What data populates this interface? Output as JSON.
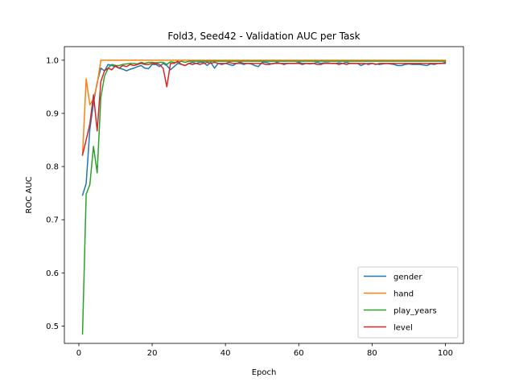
{
  "chart_data": {
    "type": "line",
    "title": "Fold3, Seed42 - Validation AUC per Task",
    "xlabel": "Epoch",
    "ylabel": "ROC AUC",
    "xlim": [
      -3.95,
      104.95
    ],
    "ylim": [
      0.4674,
      1.0255
    ],
    "xticks": [
      0,
      20,
      40,
      60,
      80,
      100
    ],
    "yticks": [
      0.5,
      0.6,
      0.7,
      0.8,
      0.9,
      1.0
    ],
    "ytick_labels": [
      "0.5",
      "0.6",
      "0.7",
      "0.8",
      "0.9",
      "1.0"
    ],
    "grid": false,
    "legend_position": "lower-right",
    "x": [
      1,
      2,
      3,
      4,
      5,
      6,
      7,
      8,
      9,
      10,
      11,
      12,
      13,
      14,
      15,
      16,
      17,
      18,
      19,
      20,
      21,
      22,
      23,
      24,
      25,
      26,
      27,
      28,
      29,
      30,
      31,
      32,
      33,
      34,
      35,
      36,
      37,
      38,
      39,
      40,
      41,
      42,
      43,
      44,
      45,
      46,
      47,
      48,
      49,
      50,
      51,
      52,
      53,
      54,
      55,
      56,
      57,
      58,
      59,
      60,
      61,
      62,
      63,
      64,
      65,
      66,
      67,
      68,
      69,
      70,
      71,
      72,
      73,
      74,
      75,
      76,
      77,
      78,
      79,
      80,
      81,
      82,
      83,
      84,
      85,
      86,
      87,
      88,
      89,
      90,
      91,
      92,
      93,
      94,
      95,
      96,
      97,
      98,
      99,
      100
    ],
    "series": [
      {
        "name": "gender",
        "color": "#1f77b4",
        "values": [
          0.746,
          0.768,
          0.87,
          0.92,
          0.958,
          0.985,
          0.98,
          0.992,
          0.99,
          0.988,
          0.985,
          0.983,
          0.98,
          0.983,
          0.985,
          0.988,
          0.99,
          0.985,
          0.984,
          0.992,
          0.992,
          0.988,
          0.994,
          0.99,
          0.982,
          0.988,
          0.994,
          0.992,
          0.99,
          0.994,
          0.996,
          0.994,
          0.996,
          0.996,
          0.99,
          0.996,
          0.985,
          0.994,
          0.994,
          0.994,
          0.992,
          0.99,
          0.994,
          0.994,
          0.992,
          0.994,
          0.993,
          0.99,
          0.988,
          0.996,
          0.996,
          0.994,
          0.993,
          0.996,
          0.994,
          0.994,
          0.994,
          0.994,
          0.994,
          0.996,
          0.994,
          0.994,
          0.993,
          0.994,
          0.996,
          0.994,
          0.995,
          0.995,
          0.994,
          0.994,
          0.995,
          0.994,
          0.996,
          0.994,
          0.994,
          0.994,
          0.99,
          0.993,
          0.994,
          0.994,
          0.993,
          0.992,
          0.993,
          0.994,
          0.993,
          0.992,
          0.99,
          0.99,
          0.992,
          0.993,
          0.992,
          0.992,
          0.992,
          0.991,
          0.99,
          0.993,
          0.992,
          0.994,
          0.994,
          0.994
        ]
      },
      {
        "name": "hand",
        "color": "#ff7f0e",
        "values": [
          0.821,
          0.965,
          0.916,
          0.927,
          0.955,
          1.0,
          1.0,
          1.0,
          1.0,
          1.0,
          1.0,
          1.0,
          1.0,
          1.0,
          1.0,
          1.0,
          1.0,
          1.0,
          1.0,
          1.0,
          1.0,
          1.0,
          1.0,
          1.0,
          1.0,
          1.0,
          1.0,
          1.0,
          1.0,
          1.0,
          1.0,
          1.0,
          1.0,
          1.0,
          1.0,
          1.0,
          1.0,
          1.0,
          1.0,
          1.0,
          1.0,
          1.0,
          1.0,
          1.0,
          1.0,
          1.0,
          1.0,
          1.0,
          1.0,
          1.0,
          1.0,
          1.0,
          1.0,
          1.0,
          1.0,
          1.0,
          1.0,
          1.0,
          1.0,
          1.0,
          1.0,
          1.0,
          1.0,
          1.0,
          1.0,
          1.0,
          1.0,
          1.0,
          1.0,
          1.0,
          1.0,
          1.0,
          1.0,
          1.0,
          1.0,
          1.0,
          1.0,
          1.0,
          1.0,
          1.0,
          1.0,
          1.0,
          1.0,
          1.0,
          1.0,
          1.0,
          1.0,
          1.0,
          1.0,
          1.0,
          1.0,
          1.0,
          1.0,
          1.0,
          1.0,
          1.0,
          1.0,
          1.0,
          1.0,
          1.0
        ]
      },
      {
        "name": "play_years",
        "color": "#2ca02c",
        "values": [
          0.485,
          0.748,
          0.766,
          0.838,
          0.788,
          0.93,
          0.97,
          0.985,
          0.992,
          0.99,
          0.99,
          0.992,
          0.993,
          0.994,
          0.994,
          0.993,
          0.996,
          0.994,
          0.996,
          0.996,
          0.995,
          0.996,
          0.996,
          0.992,
          0.997,
          0.996,
          0.996,
          0.998,
          0.996,
          0.998,
          0.998,
          0.998,
          0.998,
          0.998,
          0.998,
          0.998,
          0.998,
          0.998,
          0.998,
          0.998,
          0.998,
          0.998,
          0.998,
          0.998,
          0.998,
          0.998,
          0.998,
          0.998,
          0.998,
          0.998,
          0.998,
          0.998,
          0.998,
          0.998,
          0.998,
          0.998,
          0.998,
          0.998,
          0.998,
          0.998,
          0.998,
          0.998,
          0.998,
          0.998,
          0.998,
          0.998,
          0.998,
          0.998,
          0.998,
          0.998,
          0.998,
          0.998,
          0.998,
          0.998,
          0.998,
          0.998,
          0.998,
          0.998,
          0.998,
          0.998,
          0.998,
          0.998,
          0.998,
          0.998,
          0.998,
          0.998,
          0.998,
          0.998,
          0.998,
          0.998,
          0.998,
          0.998,
          0.998,
          0.998,
          0.998,
          0.998,
          0.998,
          0.998,
          0.998,
          0.998
        ]
      },
      {
        "name": "level",
        "color": "#d62728",
        "values": [
          0.822,
          0.85,
          0.88,
          0.935,
          0.867,
          0.96,
          0.98,
          0.985,
          0.982,
          0.99,
          0.985,
          0.99,
          0.988,
          0.992,
          0.99,
          0.992,
          0.994,
          0.992,
          0.992,
          0.994,
          0.994,
          0.992,
          0.985,
          0.95,
          0.994,
          0.994,
          0.998,
          0.992,
          0.99,
          0.994,
          0.992,
          0.994,
          0.992,
          0.994,
          0.996,
          0.994,
          0.996,
          0.994,
          0.992,
          0.994,
          0.996,
          0.994,
          0.994,
          0.996,
          0.994,
          0.994,
          0.994,
          0.994,
          0.994,
          0.994,
          0.992,
          0.992,
          0.994,
          0.994,
          0.994,
          0.992,
          0.994,
          0.994,
          0.994,
          0.994,
          0.992,
          0.994,
          0.994,
          0.994,
          0.992,
          0.992,
          0.994,
          0.994,
          0.994,
          0.994,
          0.992,
          0.994,
          0.992,
          0.994,
          0.994,
          0.994,
          0.994,
          0.994,
          0.992,
          0.994,
          0.992,
          0.994,
          0.994,
          0.994,
          0.994,
          0.994,
          0.994,
          0.994,
          0.994,
          0.994,
          0.994,
          0.994,
          0.994,
          0.994,
          0.994,
          0.994,
          0.994,
          0.994,
          0.994,
          0.996
        ]
      }
    ]
  }
}
